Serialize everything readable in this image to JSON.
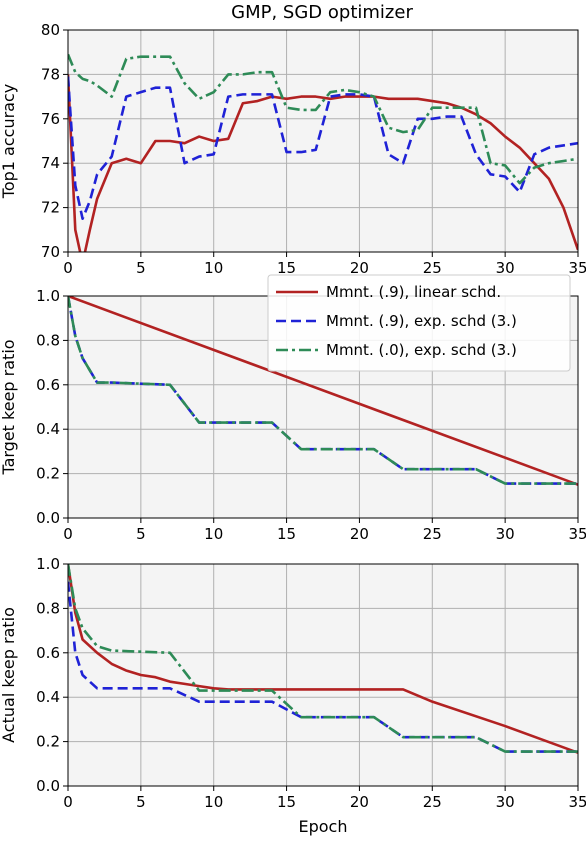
{
  "figure": {
    "title": "GMP, SGD optimizer"
  },
  "legend": {
    "entries": [
      {
        "label": "Mmnt. (.9), linear schd.",
        "color": "#b22222",
        "style": "solid"
      },
      {
        "label": "Mmnt. (.9), exp. schd (3.)",
        "color": "#1f22d6",
        "style": "dashed"
      },
      {
        "label": "Mmnt. (.0), exp. schd (3.)",
        "color": "#2e8b57",
        "style": "dashdot"
      }
    ],
    "placement": "upper-right"
  },
  "chart_data": [
    {
      "type": "line",
      "title": "GMP, SGD optimizer",
      "xlabel": "",
      "ylabel": "Top1 accuracy",
      "xlim": [
        0,
        35
      ],
      "ylim": [
        70,
        80
      ],
      "xticks": [
        0,
        5,
        10,
        15,
        20,
        25,
        30,
        35
      ],
      "yticks": [
        70,
        72,
        74,
        76,
        78,
        80
      ],
      "grid": true,
      "series": [
        {
          "name": "Mmnt. (.9), linear schd.",
          "color": "#b22222",
          "style": "solid",
          "x": [
            0,
            0.5,
            1,
            1.5,
            2,
            3,
            4,
            5,
            6,
            7,
            8,
            9,
            10,
            11,
            12,
            13,
            14,
            15,
            16,
            17,
            18,
            19,
            20,
            21,
            22,
            23,
            24,
            25,
            26,
            27,
            28,
            29,
            30,
            31,
            32,
            33,
            34,
            35
          ],
          "y": [
            78.0,
            71.0,
            69.5,
            71.0,
            72.4,
            74.0,
            74.2,
            74.0,
            75.0,
            75.0,
            74.9,
            75.2,
            75.0,
            75.1,
            76.7,
            76.8,
            77.0,
            76.9,
            77.0,
            77.0,
            76.9,
            77.0,
            77.0,
            77.0,
            76.9,
            76.9,
            76.9,
            76.8,
            76.7,
            76.5,
            76.2,
            75.8,
            75.2,
            74.7,
            74.0,
            73.3,
            72.0,
            70.1
          ]
        },
        {
          "name": "Mmnt. (.9), exp. schd (3.)",
          "color": "#1f22d6",
          "style": "dashed",
          "x": [
            0,
            0.5,
            1,
            1.5,
            2,
            3,
            4,
            5,
            6,
            7,
            8,
            9,
            10,
            11,
            12,
            13,
            14,
            15,
            16,
            17,
            18,
            19,
            20,
            21,
            22,
            23,
            24,
            25,
            26,
            27,
            28,
            29,
            30,
            31,
            32,
            33,
            34,
            35
          ],
          "y": [
            77.9,
            73.0,
            71.5,
            72.3,
            73.5,
            74.3,
            77.0,
            77.2,
            77.4,
            77.4,
            74.0,
            74.3,
            74.4,
            77.0,
            77.1,
            77.1,
            77.1,
            74.5,
            74.5,
            74.6,
            77.0,
            77.1,
            77.1,
            77.0,
            74.4,
            74.0,
            76.0,
            76.0,
            76.1,
            76.1,
            74.4,
            73.5,
            73.4,
            72.7,
            74.4,
            74.7,
            74.8,
            74.9
          ]
        },
        {
          "name": "Mmnt. (.0), exp. schd (3.)",
          "color": "#2e8b57",
          "style": "dashdot",
          "x": [
            0,
            0.5,
            1,
            1.5,
            2,
            3,
            4,
            5,
            6,
            7,
            8,
            9,
            10,
            11,
            12,
            13,
            14,
            15,
            16,
            17,
            18,
            19,
            20,
            21,
            22,
            23,
            24,
            25,
            26,
            27,
            28,
            29,
            30,
            31,
            32,
            33,
            34,
            35
          ],
          "y": [
            78.9,
            78.1,
            77.8,
            77.7,
            77.5,
            77.0,
            78.7,
            78.8,
            78.8,
            78.8,
            77.6,
            76.9,
            77.2,
            78.0,
            78.0,
            78.1,
            78.1,
            76.5,
            76.4,
            76.4,
            77.2,
            77.3,
            77.2,
            77.0,
            75.6,
            75.4,
            75.5,
            76.5,
            76.5,
            76.5,
            76.5,
            74.0,
            73.9,
            73.1,
            73.8,
            74.0,
            74.1,
            74.2
          ]
        }
      ]
    },
    {
      "type": "line",
      "xlabel": "",
      "ylabel": "Target keep ratio",
      "xlim": [
        0,
        35
      ],
      "ylim": [
        0.0,
        1.0
      ],
      "xticks": [
        0,
        5,
        10,
        15,
        20,
        25,
        30,
        35
      ],
      "yticks": [
        0.0,
        0.2,
        0.4,
        0.6,
        0.8,
        1.0
      ],
      "grid": true,
      "series": [
        {
          "name": "Mmnt. (.9), linear schd.",
          "color": "#b22222",
          "style": "solid",
          "x": [
            0,
            35
          ],
          "y": [
            1.0,
            0.15
          ]
        },
        {
          "name": "Mmnt. (.9), exp. schd (3.)",
          "color": "#1f22d6",
          "style": "dashed",
          "x": [
            0,
            0.5,
            1,
            2,
            3,
            7,
            9,
            14,
            16,
            21,
            23,
            28,
            30,
            35
          ],
          "y": [
            1.0,
            0.82,
            0.72,
            0.61,
            0.61,
            0.6,
            0.43,
            0.43,
            0.31,
            0.31,
            0.22,
            0.22,
            0.155,
            0.155
          ]
        },
        {
          "name": "Mmnt. (.0), exp. schd (3.)",
          "color": "#2e8b57",
          "style": "dashdot",
          "x": [
            0,
            0.5,
            1,
            2,
            3,
            7,
            9,
            14,
            16,
            21,
            23,
            28,
            30,
            35
          ],
          "y": [
            1.0,
            0.82,
            0.72,
            0.61,
            0.61,
            0.6,
            0.43,
            0.43,
            0.31,
            0.31,
            0.22,
            0.22,
            0.155,
            0.155
          ]
        }
      ]
    },
    {
      "type": "line",
      "xlabel": "Epoch",
      "ylabel": "Actual keep ratio",
      "xlim": [
        0,
        35
      ],
      "ylim": [
        0.0,
        1.0
      ],
      "xticks": [
        0,
        5,
        10,
        15,
        20,
        25,
        30,
        35
      ],
      "yticks": [
        0.0,
        0.2,
        0.4,
        0.6,
        0.8,
        1.0
      ],
      "grid": true,
      "series": [
        {
          "name": "Mmnt. (.9), linear schd.",
          "color": "#b22222",
          "style": "solid",
          "x": [
            0,
            0.5,
            1,
            2,
            3,
            4,
            5,
            6,
            7,
            8,
            9,
            10,
            11,
            13,
            15,
            20,
            23,
            25,
            30,
            35
          ],
          "y": [
            1.0,
            0.78,
            0.66,
            0.6,
            0.55,
            0.52,
            0.5,
            0.49,
            0.47,
            0.46,
            0.45,
            0.44,
            0.435,
            0.435,
            0.435,
            0.435,
            0.435,
            0.38,
            0.27,
            0.15
          ]
        },
        {
          "name": "Mmnt. (.9), exp. schd (3.)",
          "color": "#1f22d6",
          "style": "dashed",
          "x": [
            0,
            0.5,
            1,
            2,
            7,
            9,
            14,
            16,
            21,
            23,
            28,
            30,
            35
          ],
          "y": [
            0.92,
            0.6,
            0.5,
            0.44,
            0.44,
            0.38,
            0.38,
            0.31,
            0.31,
            0.22,
            0.22,
            0.155,
            0.155
          ]
        },
        {
          "name": "Mmnt. (.0), exp. schd (3.)",
          "color": "#2e8b57",
          "style": "dashdot",
          "x": [
            0,
            0.5,
            1,
            2,
            3,
            7,
            9,
            14,
            16,
            21,
            23,
            28,
            30,
            35
          ],
          "y": [
            1.0,
            0.8,
            0.71,
            0.63,
            0.61,
            0.6,
            0.43,
            0.43,
            0.31,
            0.31,
            0.22,
            0.22,
            0.155,
            0.155
          ]
        }
      ]
    }
  ]
}
